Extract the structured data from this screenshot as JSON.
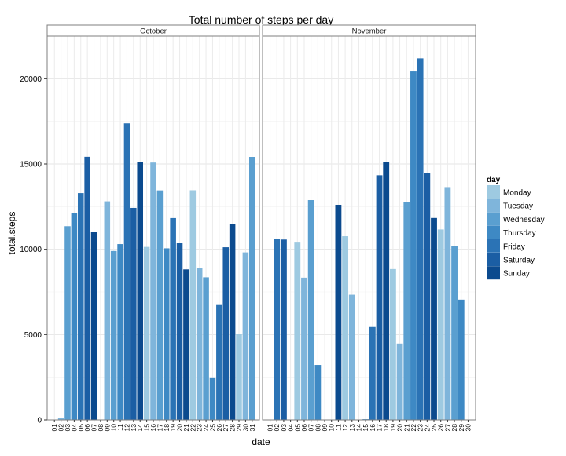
{
  "chart_data": {
    "type": "bar",
    "title": "Total number of steps per day",
    "xlabel": "date",
    "ylabel": "total.steps",
    "ylim": [
      0,
      22500
    ],
    "yticks": [
      0,
      5000,
      10000,
      15000,
      20000
    ],
    "grid": true,
    "legend": {
      "title": "day",
      "placement": "right",
      "entries": [
        {
          "label": "Monday",
          "color": "#9ecae1"
        },
        {
          "label": "Tuesday",
          "color": "#7fb5db"
        },
        {
          "label": "Wednesday",
          "color": "#5a9fd0"
        },
        {
          "label": "Thursday",
          "color": "#3e89c4"
        },
        {
          "label": "Friday",
          "color": "#2b73b5"
        },
        {
          "label": "Saturday",
          "color": "#1b5ea4"
        },
        {
          "label": "Sunday",
          "color": "#0b4a8e"
        }
      ]
    },
    "panels": [
      {
        "name": "October",
        "x": [
          "01",
          "02",
          "03",
          "04",
          "05",
          "06",
          "07",
          "08",
          "09",
          "10",
          "11",
          "12",
          "13",
          "14",
          "15",
          "16",
          "17",
          "18",
          "19",
          "20",
          "21",
          "22",
          "23",
          "24",
          "25",
          "26",
          "27",
          "28",
          "29",
          "30",
          "31"
        ],
        "values": [
          0,
          126,
          11352,
          12116,
          13294,
          15420,
          11015,
          0,
          12811,
          9900,
          10304,
          17382,
          12426,
          15098,
          10139,
          15084,
          13452,
          10056,
          11829,
          10395,
          8821,
          13460,
          8918,
          8355,
          2492,
          6778,
          10119,
          11458,
          5018,
          9819,
          15414
        ],
        "day": [
          "Monday",
          "Tuesday",
          "Wednesday",
          "Thursday",
          "Friday",
          "Saturday",
          "Sunday",
          "Monday",
          "Tuesday",
          "Wednesday",
          "Thursday",
          "Friday",
          "Saturday",
          "Sunday",
          "Monday",
          "Tuesday",
          "Wednesday",
          "Thursday",
          "Friday",
          "Saturday",
          "Sunday",
          "Monday",
          "Tuesday",
          "Wednesday",
          "Thursday",
          "Friday",
          "Saturday",
          "Sunday",
          "Monday",
          "Tuesday",
          "Wednesday"
        ]
      },
      {
        "name": "November",
        "x": [
          "01",
          "02",
          "03",
          "04",
          "05",
          "06",
          "07",
          "08",
          "09",
          "10",
          "11",
          "12",
          "13",
          "14",
          "15",
          "16",
          "17",
          "18",
          "19",
          "20",
          "21",
          "22",
          "23",
          "24",
          "25",
          "26",
          "27",
          "28",
          "29",
          "30"
        ],
        "values": [
          0,
          10600,
          10571,
          0,
          10439,
          8334,
          12883,
          3219,
          0,
          0,
          12608,
          10765,
          7336,
          0,
          41,
          5441,
          14339,
          15110,
          8841,
          4472,
          12787,
          20427,
          21194,
          14478,
          11834,
          11162,
          13646,
          10183,
          7047,
          0
        ],
        "day": [
          "Thursday",
          "Friday",
          "Saturday",
          "Sunday",
          "Monday",
          "Tuesday",
          "Wednesday",
          "Thursday",
          "Friday",
          "Saturday",
          "Sunday",
          "Monday",
          "Tuesday",
          "Wednesday",
          "Thursday",
          "Friday",
          "Saturday",
          "Sunday",
          "Monday",
          "Tuesday",
          "Wednesday",
          "Thursday",
          "Friday",
          "Saturday",
          "Sunday",
          "Monday",
          "Tuesday",
          "Wednesday",
          "Thursday",
          "Friday"
        ]
      }
    ]
  }
}
